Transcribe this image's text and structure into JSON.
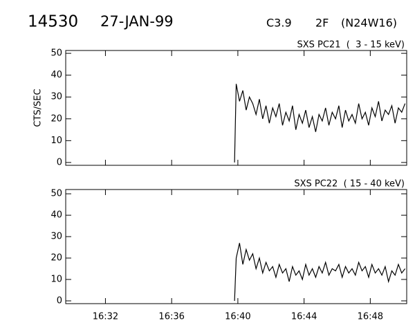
{
  "header": {
    "id": "14530",
    "date": "27-JAN-99",
    "class": "C3.9",
    "optical": "2F",
    "location": "(N24W16)"
  },
  "chart_data": [
    {
      "type": "line",
      "title": "SXS PC21  (  3 - 15 keV)",
      "ylabel": "CTS/SEC",
      "color": "#000000",
      "xlim": [
        989.6,
        1010.2
      ],
      "ylim": [
        -1.3,
        51.3
      ],
      "yticks": [
        0,
        10,
        20,
        30,
        40,
        50
      ],
      "x": [
        999.8,
        999.9,
        1000.1,
        1000.3,
        1000.5,
        1000.7,
        1000.9,
        1001.1,
        1001.3,
        1001.5,
        1001.7,
        1001.9,
        1002.1,
        1002.3,
        1002.5,
        1002.7,
        1002.9,
        1003.1,
        1003.3,
        1003.5,
        1003.7,
        1003.9,
        1004.1,
        1004.3,
        1004.5,
        1004.7,
        1004.9,
        1005.1,
        1005.3,
        1005.5,
        1005.7,
        1005.9,
        1006.1,
        1006.3,
        1006.5,
        1006.7,
        1006.9,
        1007.1,
        1007.3,
        1007.5,
        1007.7,
        1007.9,
        1008.1,
        1008.3,
        1008.5,
        1008.7,
        1008.9,
        1009.1,
        1009.3,
        1009.5,
        1009.7,
        1009.9,
        1010.1
      ],
      "values": [
        0,
        36,
        28,
        33,
        24,
        30,
        27,
        22,
        29,
        20,
        26,
        18,
        25,
        21,
        27,
        17,
        23,
        19,
        26,
        15,
        22,
        18,
        24,
        16,
        21,
        14,
        22,
        19,
        25,
        17,
        23,
        20,
        26,
        16,
        24,
        19,
        22,
        18,
        27,
        20,
        23,
        17,
        25,
        21,
        28,
        19,
        24,
        22,
        26,
        18,
        25,
        23,
        27
      ]
    },
    {
      "type": "line",
      "title": "SXS PC22  ( 15 - 40 keV)",
      "color": "#000000",
      "xlim": [
        989.6,
        1010.2
      ],
      "ylim": [
        -1.3,
        52
      ],
      "yticks": [
        0,
        10,
        20,
        30,
        40,
        50
      ],
      "xticks": [
        {
          "value": 992,
          "label": "16:32"
        },
        {
          "value": 996,
          "label": "16:36"
        },
        {
          "value": 1000,
          "label": "16:40"
        },
        {
          "value": 1004,
          "label": "16:44"
        },
        {
          "value": 1008,
          "label": "16:48"
        }
      ],
      "x": [
        999.8,
        999.9,
        1000.1,
        1000.3,
        1000.5,
        1000.7,
        1000.9,
        1001.1,
        1001.3,
        1001.5,
        1001.7,
        1001.9,
        1002.1,
        1002.3,
        1002.5,
        1002.7,
        1002.9,
        1003.1,
        1003.3,
        1003.5,
        1003.7,
        1003.9,
        1004.1,
        1004.3,
        1004.5,
        1004.7,
        1004.9,
        1005.1,
        1005.3,
        1005.5,
        1005.7,
        1005.9,
        1006.1,
        1006.3,
        1006.5,
        1006.7,
        1006.9,
        1007.1,
        1007.3,
        1007.5,
        1007.7,
        1007.9,
        1008.1,
        1008.3,
        1008.5,
        1008.7,
        1008.9,
        1009.1,
        1009.3,
        1009.5,
        1009.7,
        1009.9,
        1010.1
      ],
      "values": [
        0,
        20,
        27,
        17,
        24,
        19,
        22,
        15,
        20,
        13,
        18,
        14,
        16,
        11,
        17,
        13,
        15,
        9,
        16,
        12,
        14,
        10,
        17,
        12,
        15,
        11,
        16,
        13,
        18,
        12,
        15,
        14,
        17,
        11,
        16,
        13,
        15,
        12,
        18,
        14,
        16,
        11,
        17,
        13,
        15,
        12,
        16,
        9,
        14,
        12,
        17,
        13,
        15
      ]
    }
  ]
}
